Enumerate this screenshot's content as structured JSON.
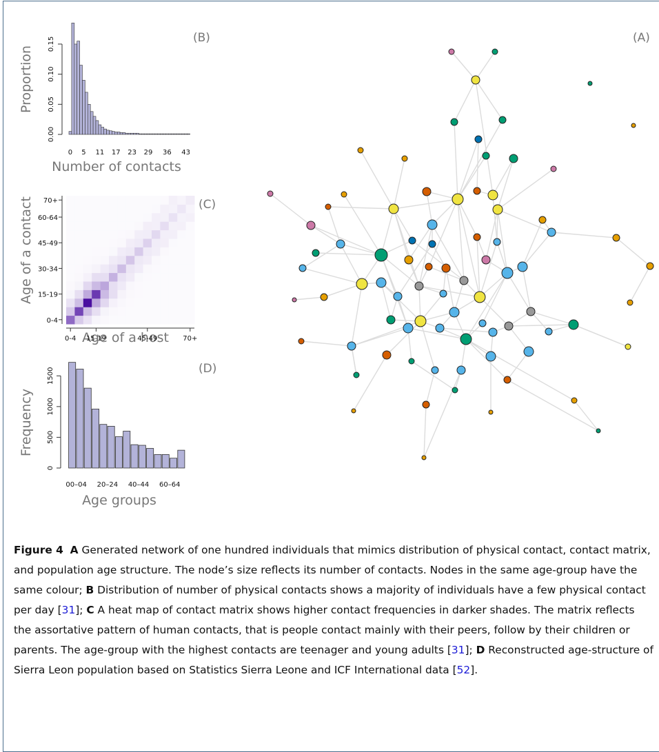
{
  "panels": {
    "network": {
      "label": "(A)"
    },
    "histogram": {
      "label": "(B)",
      "ylabel": "Proportion",
      "xlabel": "Number of contacts",
      "yticks": [
        "0.00",
        "0.05",
        "0.10",
        "0.15"
      ],
      "xticks": [
        "0",
        "5",
        "11",
        "17",
        "23",
        "29",
        "36",
        "43"
      ]
    },
    "matrix": {
      "label": "(C)",
      "ylabel": "Age of a contact",
      "xlabel": "Age of a host",
      "yticks": [
        "0-4",
        "15-19",
        "30-34",
        "45-49",
        "60-64",
        "70+"
      ],
      "xticks": [
        "0-4",
        "15-19",
        "45-49",
        "70+"
      ]
    },
    "agebars": {
      "label": "(D)",
      "ylabel": "Frequency",
      "xlabel": "Age groups",
      "yticks": [
        "0",
        "500",
        "1000",
        "1500"
      ],
      "xticks": [
        "00–04",
        "20–24",
        "40–44",
        "60–64"
      ]
    }
  },
  "chart_data": [
    {
      "type": "bar",
      "panel": "B",
      "x": [
        0,
        1,
        2,
        3,
        4,
        5,
        6,
        7,
        8,
        9,
        10,
        11,
        12,
        13,
        14,
        15,
        16,
        17,
        18,
        19,
        20,
        21,
        22,
        23,
        24,
        25,
        26,
        27,
        28,
        29,
        30,
        31,
        32,
        33,
        34,
        35,
        36,
        37,
        38,
        39,
        40,
        41,
        42,
        43,
        44
      ],
      "values": [
        0.005,
        0.185,
        0.15,
        0.155,
        0.115,
        0.09,
        0.07,
        0.05,
        0.038,
        0.03,
        0.023,
        0.016,
        0.012,
        0.009,
        0.007,
        0.006,
        0.005,
        0.004,
        0.004,
        0.003,
        0.003,
        0.002,
        0.002,
        0.002,
        0.002,
        0.002,
        0.001,
        0.001,
        0.001,
        0.001,
        0.001,
        0.001,
        0.001,
        0.001,
        0.001,
        0.001,
        0.001,
        0.001,
        0.001,
        0.001,
        0.001,
        0.001,
        0.001,
        0.001,
        0.001
      ],
      "xlabel": "Number of contacts",
      "ylabel": "Proportion",
      "ylim": [
        0,
        0.19
      ],
      "color": "#b3b3d9"
    },
    {
      "type": "heatmap",
      "panel": "C",
      "categories": [
        "0-4",
        "5-9",
        "10-14",
        "15-19",
        "20-24",
        "25-29",
        "30-34",
        "35-39",
        "40-44",
        "45-49",
        "50-54",
        "55-59",
        "60-64",
        "65-69",
        "70+"
      ],
      "diagonal_intensity": [
        0.6,
        0.75,
        1.0,
        0.8,
        0.35,
        0.3,
        0.25,
        0.22,
        0.2,
        0.17,
        0.14,
        0.12,
        0.1,
        0.08,
        0.06
      ],
      "xlabel": "Age of a host",
      "ylabel": "Age of a contact",
      "color": "#4a0fa0"
    },
    {
      "type": "bar",
      "panel": "D",
      "categories": [
        "00–04",
        "05–09",
        "10–14",
        "15–19",
        "20–24",
        "25–29",
        "30–34",
        "35–39",
        "40–44",
        "45–49",
        "50–54",
        "55–59",
        "60–64",
        "65–69",
        "70+"
      ],
      "values": [
        1720,
        1610,
        1300,
        960,
        710,
        680,
        510,
        600,
        380,
        370,
        320,
        220,
        220,
        160,
        290
      ],
      "xlabel": "Age groups",
      "ylabel": "Frequency",
      "ylim": [
        0,
        1750
      ],
      "color": "#b3b3d9"
    }
  ],
  "colors": {
    "orange": "#e69f00",
    "blue": "#56b4e9",
    "green": "#009e73",
    "yellow": "#f0e442",
    "darkblue": "#0072b2",
    "vermillion": "#d55e00",
    "pink": "#cc79a7",
    "grey": "#999999"
  },
  "caption": {
    "fig": "Figure 4",
    "a_letter": "A",
    "a_text": " Generated network of one hundred individuals that mimics distribution of physical contact, contact matrix, and population age structure. The node’s size reflects its number of contacts. Nodes in the same age-group have the same colour; ",
    "b_letter": "B",
    "b_text": " Distribution of number of physical contacts shows a majority of individuals have a few physical contact per day [",
    "ref1": "31",
    "b_end": "]; ",
    "c_letter": "C",
    "c_text": " A heat map of contact matrix shows higher contact frequencies in darker shades. The matrix reflects the assortative pattern of human contacts, that is people contact mainly with their peers, follow by their children or parents. The age-group with the highest contacts are teenager and young adults [",
    "ref2": "31",
    "c_end": "]; ",
    "d_letter": "D",
    "d_text": " Reconstructed age-structure of Sierra Leon population based on Statistics Sierra Leone and ICF International data [",
    "ref3": "52",
    "d_end": "]."
  }
}
